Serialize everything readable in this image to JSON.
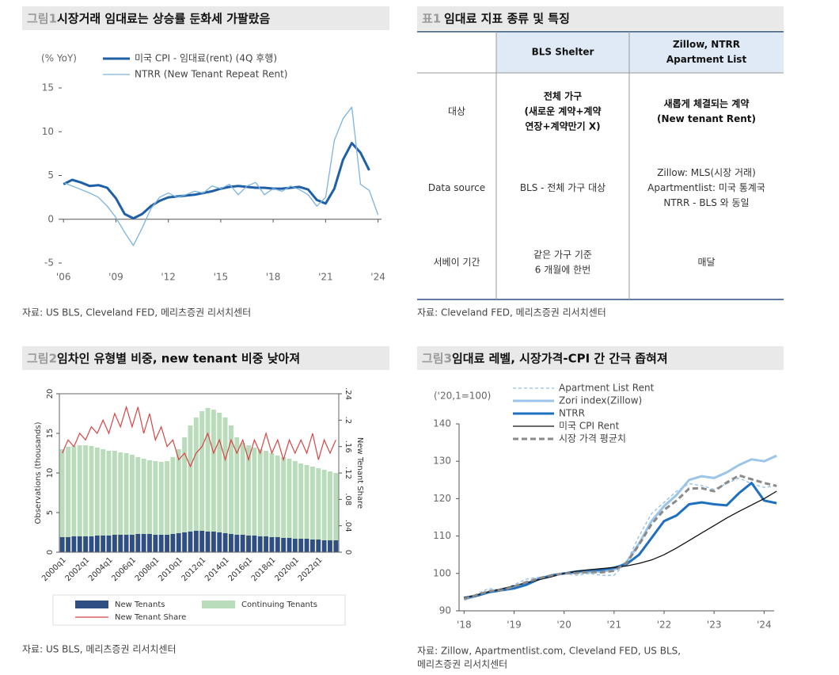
{
  "chart_data": [
    {
      "type": "line",
      "label": "그림1",
      "title": "시장거래 임대료는 상승률 둔화세 가팔랐음",
      "y_unit": "(% YoY)",
      "xlim": [
        2005.9,
        2024.2
      ],
      "xticks": [
        {
          "value": 2006,
          "label": "'06"
        },
        {
          "value": 2009,
          "label": "'09"
        },
        {
          "value": 2012,
          "label": "'12"
        },
        {
          "value": 2015,
          "label": "'15"
        },
        {
          "value": 2018,
          "label": "'18"
        },
        {
          "value": 2021,
          "label": "'21"
        },
        {
          "value": 2024,
          "label": "'24"
        }
      ],
      "ylim": [
        -5,
        15
      ],
      "yticks": [
        -5,
        0,
        5,
        10,
        15
      ],
      "series": [
        {
          "name": "미국 CPI - 임대료(rent) (4Q 후행)",
          "color": "#1f5fa6",
          "weight": "heavy",
          "line_style": "solid",
          "x": [
            2006,
            2006.5,
            2007,
            2007.5,
            2008,
            2008.5,
            2009,
            2009.5,
            2010,
            2010.5,
            2011,
            2011.5,
            2012,
            2012.5,
            2013,
            2013.5,
            2014,
            2014.5,
            2015,
            2015.5,
            2016,
            2016.5,
            2017,
            2017.5,
            2018,
            2018.5,
            2019,
            2019.5,
            2020,
            2020.5,
            2021,
            2021.5,
            2022,
            2022.5,
            2023,
            2023.5
          ],
          "values": [
            4.0,
            4.5,
            4.2,
            3.8,
            3.9,
            3.6,
            2.4,
            0.6,
            0.1,
            0.6,
            1.5,
            2.1,
            2.5,
            2.6,
            2.7,
            2.8,
            3.0,
            3.2,
            3.5,
            3.7,
            3.8,
            3.7,
            3.6,
            3.6,
            3.5,
            3.5,
            3.6,
            3.7,
            3.4,
            2.2,
            1.8,
            3.5,
            6.8,
            8.7,
            7.6,
            5.6
          ]
        },
        {
          "name": "NTRR (New Tenant Repeat Rent)",
          "color": "#7ab3e0",
          "weight": "light",
          "line_style": "solid",
          "x": [
            2006,
            2006.5,
            2007,
            2007.5,
            2008,
            2008.5,
            2009,
            2009.5,
            2010,
            2010.5,
            2011,
            2011.5,
            2012,
            2012.5,
            2013,
            2013.5,
            2014,
            2014.5,
            2015,
            2015.5,
            2016,
            2016.5,
            2017,
            2017.5,
            2018,
            2018.5,
            2019,
            2019.5,
            2020,
            2020.5,
            2021,
            2021.5,
            2022,
            2022.5,
            2023,
            2023.5,
            2024
          ],
          "values": [
            4.2,
            3.8,
            3.4,
            3.0,
            2.5,
            1.5,
            0.2,
            -1.5,
            -3.0,
            -1.0,
            1.2,
            2.5,
            3.0,
            2.5,
            2.8,
            3.2,
            3.0,
            3.8,
            3.5,
            4.0,
            2.8,
            3.8,
            4.2,
            2.8,
            3.5,
            3.2,
            3.8,
            3.4,
            2.8,
            1.5,
            2.5,
            9.0,
            11.5,
            12.8,
            4.0,
            3.3,
            0.5
          ]
        }
      ],
      "source": [
        "자료: US BLS, Cleveland FED, 메리츠증권 리서치센터"
      ]
    },
    {
      "type": "bar",
      "stacked": true,
      "label": "그림2",
      "title": "임차인 유형별 비중, new tenant 비중 낮아져",
      "ylabel": "Observations (thousands)",
      "y2label": "New Tenant Share",
      "categories": [
        "2000q1",
        null,
        null,
        null,
        "2002q1",
        null,
        null,
        null,
        "2004q1",
        null,
        null,
        null,
        "2006q1",
        null,
        null,
        null,
        "2008q1",
        null,
        null,
        null,
        "2010q1",
        null,
        null,
        null,
        "2012q1",
        null,
        null,
        null,
        "2014q1",
        null,
        null,
        null,
        "2016q1",
        null,
        null,
        null,
        "2018q1",
        null,
        null,
        null,
        "2020q1",
        null,
        null,
        null,
        "2022q1",
        null,
        null,
        null
      ],
      "ylim": [
        0,
        20
      ],
      "yticks": [
        0,
        5,
        10,
        15,
        20
      ],
      "y2lim": [
        0,
        0.24
      ],
      "y2ticks": [
        0,
        {
          "value": 0.04,
          "label": ".04"
        },
        {
          "value": 0.08,
          "label": ".08"
        },
        {
          "value": 0.12,
          "label": ".12"
        },
        {
          "value": 0.16,
          "label": ".16"
        },
        {
          "value": 0.2,
          "label": ".2"
        },
        {
          "value": 0.24,
          "label": ".24"
        }
      ],
      "series": [
        {
          "name": "New Tenants",
          "color": "#2f4f82",
          "values": [
            1.9,
            1.9,
            2.0,
            2.0,
            2.0,
            2.0,
            2.1,
            2.1,
            2.1,
            2.2,
            2.2,
            2.2,
            2.2,
            2.3,
            2.3,
            2.3,
            2.2,
            2.2,
            2.2,
            2.3,
            2.4,
            2.5,
            2.6,
            2.7,
            2.7,
            2.6,
            2.6,
            2.5,
            2.4,
            2.3,
            2.2,
            2.2,
            2.1,
            2.1,
            2.0,
            2.0,
            1.9,
            1.9,
            1.8,
            1.8,
            1.7,
            1.7,
            1.7,
            1.6,
            1.6,
            1.5,
            1.5,
            1.5
          ]
        },
        {
          "name": "Continuing Tenants",
          "color": "#b9dcba",
          "values": [
            11.1,
            11.4,
            11.4,
            11.5,
            11.5,
            11.4,
            11.1,
            10.9,
            10.7,
            10.6,
            10.4,
            10.3,
            10.1,
            9.7,
            9.5,
            9.3,
            9.3,
            9.2,
            9.3,
            9.7,
            10.6,
            12.0,
            13.4,
            14.3,
            15.1,
            15.6,
            15.4,
            15.1,
            14.6,
            13.7,
            12.3,
            11.6,
            11.4,
            11.1,
            11.0,
            10.8,
            10.6,
            10.3,
            10.2,
            10.0,
            9.8,
            9.5,
            9.3,
            9.2,
            9.0,
            8.9,
            8.7,
            8.5
          ]
        },
        {
          "name": "New Tenant Share",
          "color": "#d64545",
          "kind": "line",
          "axis": "y2",
          "values": [
            0.15,
            0.17,
            0.16,
            0.18,
            0.17,
            0.19,
            0.18,
            0.2,
            0.18,
            0.21,
            0.19,
            0.22,
            0.19,
            0.22,
            0.18,
            0.21,
            0.17,
            0.19,
            0.16,
            0.17,
            0.14,
            0.15,
            0.13,
            0.15,
            0.16,
            0.18,
            0.15,
            0.17,
            0.14,
            0.17,
            0.15,
            0.17,
            0.14,
            0.17,
            0.15,
            0.18,
            0.15,
            0.17,
            0.14,
            0.17,
            0.15,
            0.17,
            0.15,
            0.18,
            0.14,
            0.17,
            0.15,
            0.17
          ]
        }
      ],
      "source": [
        "자료: US BLS, 메리츠증권 리서치센터"
      ]
    },
    {
      "type": "line",
      "label": "그림3",
      "title": "임대료 레벨, 시장가격-CPI 간 간극 좁혀져",
      "y_unit": "('20,1=100)",
      "xlim": [
        2017.9,
        2024.2
      ],
      "xticks": [
        {
          "value": 2018,
          "label": "'18"
        },
        {
          "value": 2019,
          "label": "'19"
        },
        {
          "value": 2020,
          "label": "'20"
        },
        {
          "value": 2021,
          "label": "'21"
        },
        {
          "value": 2022,
          "label": "'22"
        },
        {
          "value": 2023,
          "label": "'23"
        },
        {
          "value": 2024,
          "label": "'24"
        }
      ],
      "ylim": [
        90,
        140
      ],
      "yticks": [
        90,
        100,
        110,
        120,
        130,
        140
      ],
      "x": [
        2018,
        2018.25,
        2018.5,
        2018.75,
        2019,
        2019.25,
        2019.5,
        2019.75,
        2020,
        2020.25,
        2020.5,
        2020.75,
        2021,
        2021.25,
        2021.5,
        2021.75,
        2022,
        2022.25,
        2022.5,
        2022.75,
        2023,
        2023.25,
        2023.5,
        2023.75,
        2024,
        2024.25
      ],
      "series": [
        {
          "name": "Apartment List Rent",
          "color": "#8fbfe8",
          "weight": "light",
          "line_style": "dashed",
          "values": [
            93,
            94.5,
            96,
            95.5,
            97,
            98.5,
            99,
            99.5,
            100,
            99.5,
            100,
            99.5,
            99.5,
            103,
            110,
            116,
            119,
            122,
            124,
            123.5,
            122.5,
            124,
            125.5,
            124,
            123,
            123.5
          ]
        },
        {
          "name": "Zori index(Zillow)",
          "color": "#9cc5ea",
          "weight": "heavy",
          "line_style": "solid",
          "values": [
            93,
            94,
            95,
            95.5,
            96.5,
            97.5,
            98.5,
            99.5,
            100,
            100.3,
            100.3,
            100.5,
            101,
            103,
            108,
            114,
            118,
            121,
            125,
            126,
            125.5,
            127,
            129,
            130.5,
            130,
            131.5
          ]
        },
        {
          "name": "NTRR",
          "color": "#1f6fbf",
          "weight": "heavy",
          "line_style": "solid",
          "values": [
            93.5,
            94,
            95,
            95.5,
            96,
            97,
            98.5,
            99.5,
            100,
            100.5,
            100.8,
            101.0,
            101.5,
            102.5,
            105,
            109.5,
            114,
            115.5,
            118.5,
            119,
            118.5,
            118.2,
            121.5,
            124.2,
            119.5,
            118.8
          ]
        },
        {
          "name": "미국 CPI Rent",
          "color": "#111111",
          "weight": "light",
          "line_style": "solid",
          "values": [
            93.5,
            94.3,
            95.1,
            95.9,
            96.7,
            97.5,
            98.3,
            99.1,
            100,
            100.6,
            101.0,
            101.3,
            101.6,
            102.0,
            102.7,
            103.6,
            105,
            106.8,
            108.8,
            110.8,
            112.8,
            114.8,
            116.6,
            118.3,
            120.0,
            122.0
          ]
        },
        {
          "name": "시장 가격 평균치",
          "color": "#8a8a8a",
          "weight": "heavy",
          "line_style": "dashed",
          "values": [
            93.2,
            94.2,
            95.3,
            95.5,
            96.5,
            97.7,
            98.7,
            99.5,
            100,
            100.1,
            100.4,
            100.3,
            100.7,
            102.8,
            107.7,
            113.2,
            117,
            119.5,
            122.7,
            122.8,
            122,
            124.3,
            126.2,
            125.2,
            124.2,
            123.4
          ]
        }
      ],
      "source": [
        "자료: Zillow, Apartmentlist.com, Cleveland FED, US BLS,",
        "메리츠증권 리서치센터"
      ]
    }
  ],
  "table": {
    "label": "표1",
    "title": "임대료 지표 종류 및 특징",
    "header": [
      "BLS Shelter",
      [
        "Zillow, NTRR",
        "Apartment List"
      ]
    ],
    "rows": [
      {
        "bold": true,
        "cells": [
          "대상",
          [
            "전체 가구",
            "(새로운 계약+계약",
            "연장+계약만기 X)"
          ],
          [
            "새롭게 체결되는 계약",
            "(New tenant Rent)"
          ]
        ]
      },
      {
        "bold": false,
        "cells": [
          "Data source",
          "BLS - 전체 가구 대상",
          [
            "Zillow: MLS(시장 거래)",
            "Apartmentlist: 미국 통계국",
            "NTRR - BLS 와 동일"
          ]
        ]
      },
      {
        "bold": false,
        "cells": [
          "서베이 기간",
          [
            "같은 가구 기준",
            "6 개월에 한번"
          ],
          "매달"
        ]
      }
    ],
    "source": "자료: Cleveland FED, 메리츠증권 리서치센터"
  }
}
